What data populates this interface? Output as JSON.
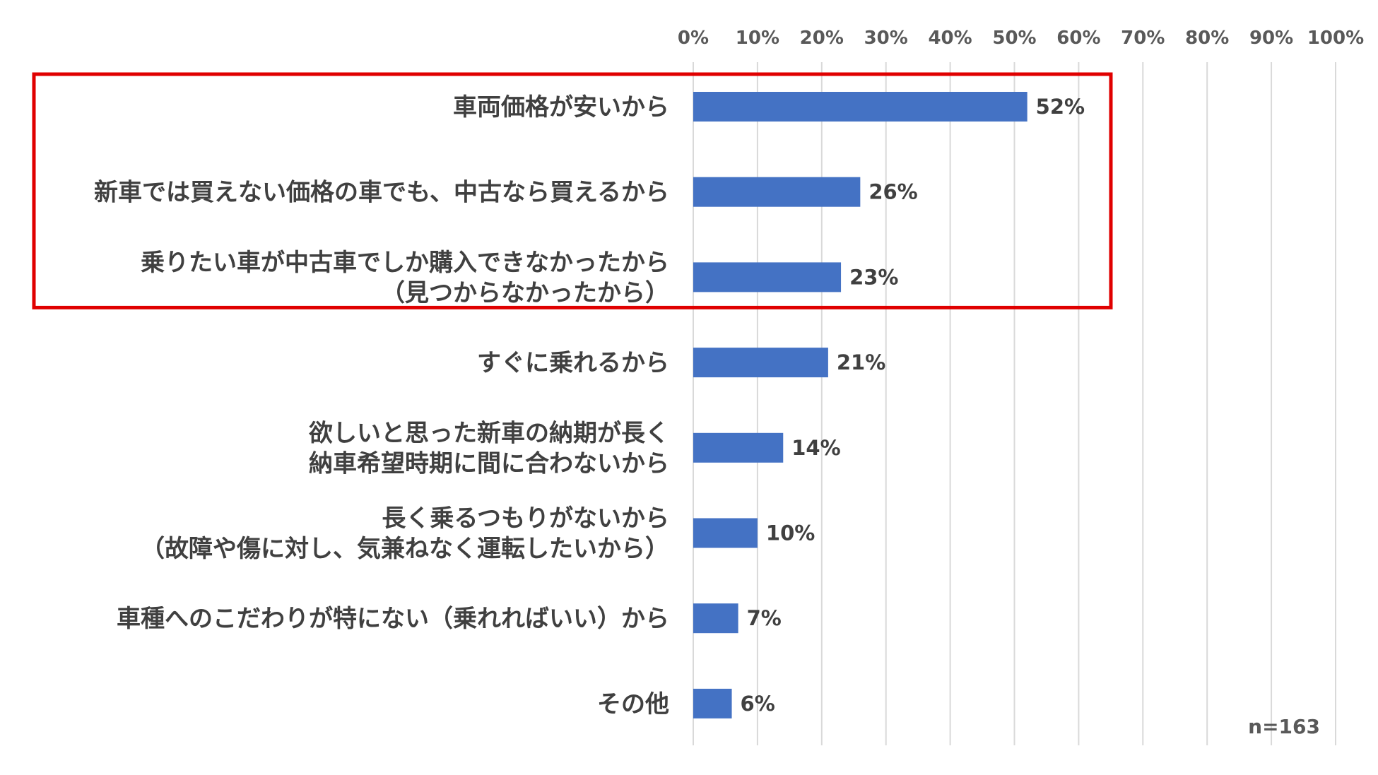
{
  "chart_data": {
    "type": "bar",
    "orientation": "horizontal",
    "categories": [
      [
        "車両価格が安いから"
      ],
      [
        "新車では買えない価格の車でも、中古なら買えるから"
      ],
      [
        "乗りたい車が中古車でしか購入できなかったから",
        "（見つからなかったから）"
      ],
      [
        "すぐに乗れるから"
      ],
      [
        "欲しいと思った新車の納期が長く",
        "納車希望時期に間に合わないから"
      ],
      [
        "長く乗るつもりがないから",
        "（故障や傷に対し、気兼ねなく運転したいから）"
      ],
      [
        "車種へのこだわりが特にない（乗れればいい）から"
      ],
      [
        "その他"
      ]
    ],
    "values": [
      52,
      26,
      23,
      21,
      14,
      10,
      7,
      6
    ],
    "data_labels": [
      "52%",
      "26%",
      "23%",
      "21%",
      "14%",
      "10%",
      "7%",
      "6%"
    ],
    "x_ticks": [
      "0%",
      "10%",
      "20%",
      "30%",
      "40%",
      "50%",
      "60%",
      "70%",
      "80%",
      "90%",
      "100%"
    ],
    "xlim": [
      0,
      100
    ],
    "grid": true,
    "x_axis_position": "top",
    "highlight": {
      "categories_index": [
        0,
        1,
        2
      ],
      "style": "box",
      "color": "#e00000"
    },
    "note": "n=163",
    "colors": {
      "bar": "#4472c4",
      "grid": "#d9d9d9",
      "highlight": "#e00000"
    }
  }
}
